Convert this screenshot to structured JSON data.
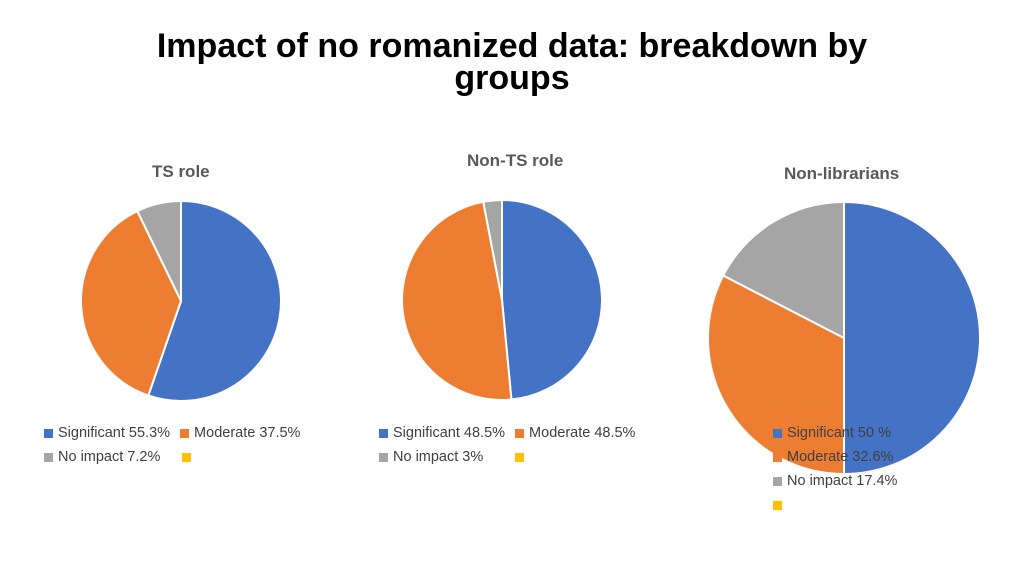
{
  "title": "Impact of no romanized data: breakdown by groups",
  "colors": {
    "significant": "#4472C4",
    "moderate": "#ED7D31",
    "no_impact": "#A5A5A5",
    "extra": "#FFC000"
  },
  "chart_data": [
    {
      "type": "pie",
      "title": "TS role",
      "categories": [
        "Significant",
        "Moderate",
        "No impact",
        ""
      ],
      "values": [
        55.3,
        37.5,
        7.2,
        0
      ],
      "legend_labels": [
        "Significant 55.3%",
        "Moderate 37.5%",
        "No impact 7.2%",
        ""
      ],
      "legend_position": "bottom"
    },
    {
      "type": "pie",
      "title": "Non-TS role",
      "categories": [
        "Significant",
        "Moderate",
        "No impact",
        ""
      ],
      "values": [
        48.5,
        48.5,
        3,
        0
      ],
      "legend_labels": [
        "Significant 48.5%",
        "Moderate 48.5%",
        "No impact 3%",
        ""
      ],
      "legend_position": "bottom"
    },
    {
      "type": "pie",
      "title": "Non-librarians",
      "categories": [
        "Significant",
        "Moderate",
        "No impact",
        ""
      ],
      "values": [
        50,
        32.6,
        17.4,
        0
      ],
      "legend_labels": [
        "Significant 50 %",
        "Moderate 32.6%",
        "No impact 17.4%",
        ""
      ],
      "legend_position": "bottom"
    }
  ]
}
